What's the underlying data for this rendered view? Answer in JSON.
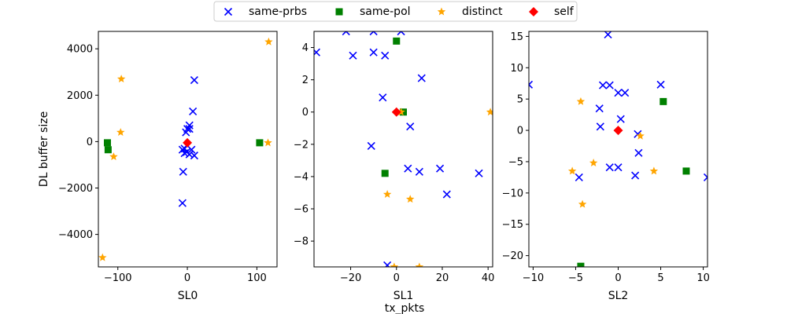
{
  "figure": {
    "legend": [
      {
        "name": "same-prbs",
        "marker": "x",
        "color": "#0000ff"
      },
      {
        "name": "same-pol",
        "marker": "square",
        "color": "#008000"
      },
      {
        "name": "distinct",
        "marker": "star",
        "color": "#ffa500"
      },
      {
        "name": "self",
        "marker": "diamond",
        "color": "#ff0000"
      }
    ],
    "ylabel": "DL buffer size",
    "xlabel": "tx_pkts"
  },
  "chart_data": [
    {
      "type": "scatter",
      "xlabel": "SL0",
      "ylabel": "DL buffer size",
      "xlim": [
        -128,
        129
      ],
      "ylim": [
        -5400,
        4750
      ],
      "xticks": [
        -100,
        0,
        100
      ],
      "xtick_labels": [
        "−100",
        "0",
        "100"
      ],
      "yticks": [
        -4000,
        -2000,
        0,
        2000,
        4000
      ],
      "ytick_labels": [
        "−4000",
        "−2000",
        "0",
        "2000",
        "4000"
      ],
      "series": [
        {
          "name": "same-prbs",
          "points": [
            [
              10,
              2650
            ],
            [
              8,
              1300
            ],
            [
              3,
              700
            ],
            [
              0,
              550
            ],
            [
              -2,
              400
            ],
            [
              -4,
              -300
            ],
            [
              -7,
              -350
            ],
            [
              -4,
              -500
            ],
            [
              -1,
              -450
            ],
            [
              3,
              -550
            ],
            [
              10,
              -600
            ],
            [
              -6,
              -1300
            ],
            [
              -7,
              -2650
            ],
            [
              3,
              550
            ],
            [
              6,
              -350
            ]
          ]
        },
        {
          "name": "same-pol",
          "points": [
            [
              -115,
              -50
            ],
            [
              -114,
              -350
            ],
            [
              104,
              -50
            ]
          ]
        },
        {
          "name": "distinct",
          "points": [
            [
              -95,
              2700
            ],
            [
              -96,
              400
            ],
            [
              -106,
              -650
            ],
            [
              -122,
              -5000
            ],
            [
              117,
              4300
            ],
            [
              116,
              -50
            ]
          ]
        },
        {
          "name": "self",
          "points": [
            [
              0,
              -50
            ]
          ]
        }
      ]
    },
    {
      "type": "scatter",
      "xlabel": "SL1",
      "ylabel": "",
      "xlim": [
        -36,
        42
      ],
      "ylim": [
        -9.6,
        5
      ],
      "xticks": [
        -20,
        0,
        20,
        40
      ],
      "xtick_labels": [
        "−20",
        "0",
        "20",
        "40"
      ],
      "yticks": [
        -8,
        -6,
        -4,
        -2,
        0,
        2,
        4
      ],
      "ytick_labels": [
        "−8",
        "−6",
        "−4",
        "−2",
        "0",
        "2",
        "4"
      ],
      "series": [
        {
          "name": "same-prbs",
          "points": [
            [
              -35,
              3.7
            ],
            [
              -22,
              5.0
            ],
            [
              -19,
              3.5
            ],
            [
              -10,
              3.7
            ],
            [
              -10,
              5.0
            ],
            [
              -5,
              3.5
            ],
            [
              2,
              5.0
            ],
            [
              11,
              2.1
            ],
            [
              -6,
              0.9
            ],
            [
              -11,
              -2.1
            ],
            [
              6,
              -0.9
            ],
            [
              5,
              -3.5
            ],
            [
              10,
              -3.7
            ],
            [
              19,
              -3.5
            ],
            [
              22,
              -5.1
            ],
            [
              36,
              -3.8
            ],
            [
              -4,
              -9.5
            ]
          ]
        },
        {
          "name": "same-pol",
          "points": [
            [
              0,
              4.4
            ],
            [
              3,
              0
            ],
            [
              -5,
              -3.8
            ]
          ]
        },
        {
          "name": "distinct",
          "points": [
            [
              2,
              0
            ],
            [
              41,
              0
            ],
            [
              -4,
              -5.1
            ],
            [
              6,
              -5.4
            ],
            [
              -1,
              -9.6
            ],
            [
              10,
              -9.6
            ]
          ]
        },
        {
          "name": "self",
          "points": [
            [
              0,
              0
            ]
          ]
        }
      ]
    },
    {
      "type": "scatter",
      "xlabel": "SL2",
      "ylabel": "",
      "xlim": [
        -10.5,
        10.5
      ],
      "ylim": [
        -21.8,
        15.8
      ],
      "xticks": [
        -10,
        -5,
        0,
        5,
        10
      ],
      "xtick_labels": [
        "−10",
        "−5",
        "0",
        "5",
        "10"
      ],
      "yticks": [
        -20,
        -15,
        -10,
        -5,
        0,
        5,
        10,
        15
      ],
      "ytick_labels": [
        "−20",
        "−15",
        "−10",
        "−5",
        "0",
        "5",
        "10",
        "15"
      ],
      "series": [
        {
          "name": "same-prbs",
          "points": [
            [
              -10.5,
              7.3
            ],
            [
              -1.2,
              15.3
            ],
            [
              -1.8,
              7.2
            ],
            [
              -1.0,
              7.2
            ],
            [
              0,
              6.0
            ],
            [
              0.8,
              6.0
            ],
            [
              5,
              7.3
            ],
            [
              -2.2,
              3.5
            ],
            [
              0.3,
              1.8
            ],
            [
              -2.1,
              0.6
            ],
            [
              2.3,
              -0.6
            ],
            [
              2.4,
              -3.6
            ],
            [
              -1.0,
              -5.9
            ],
            [
              0,
              -5.9
            ],
            [
              2,
              -7.2
            ],
            [
              -4.6,
              -7.5
            ],
            [
              10.5,
              -7.5
            ]
          ]
        },
        {
          "name": "same-pol",
          "points": [
            [
              5.3,
              4.6
            ],
            [
              8,
              -6.5
            ],
            [
              -4.4,
              -21.7
            ]
          ]
        },
        {
          "name": "distinct",
          "points": [
            [
              -4.4,
              4.6
            ],
            [
              2.6,
              -0.9
            ],
            [
              -2.9,
              -5.2
            ],
            [
              -5.4,
              -6.5
            ],
            [
              4.2,
              -6.5
            ],
            [
              -4.2,
              -11.8
            ]
          ]
        },
        {
          "name": "self",
          "points": [
            [
              0,
              0
            ]
          ]
        }
      ]
    }
  ]
}
